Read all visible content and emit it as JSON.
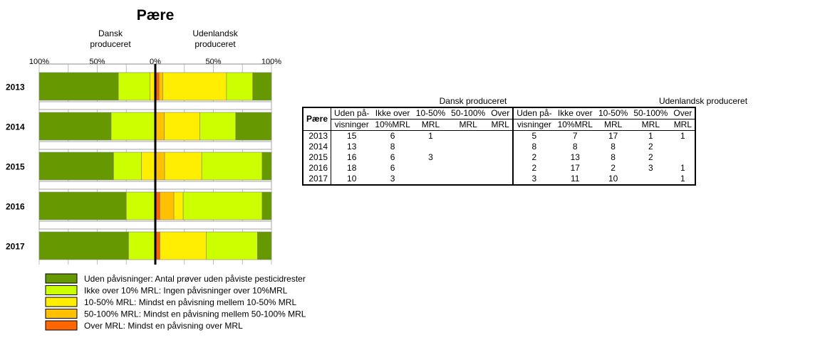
{
  "chart_data": {
    "type": "bar",
    "title": "Pære",
    "subtitles": {
      "left": [
        "Dansk",
        "produceret"
      ],
      "right": [
        "Udenlandsk",
        "produceret"
      ]
    },
    "x_ticks": [
      "100%",
      "50%",
      "0%",
      "50%",
      "100%"
    ],
    "categories": [
      "2013",
      "2014",
      "2015",
      "2016",
      "2017"
    ],
    "colors": {
      "uden": "#669900",
      "ikke10": "#CCFF00",
      "p10_50": "#FFEE00",
      "p50_100": "#FFC000",
      "over": "#FF6600"
    },
    "domestic": [
      {
        "year": "2013",
        "uden": 15,
        "ikke10": 6,
        "p10_50": 1,
        "p50_100": 0,
        "over": 0
      },
      {
        "year": "2014",
        "uden": 13,
        "ikke10": 8,
        "p10_50": 0,
        "p50_100": 0,
        "over": 0
      },
      {
        "year": "2015",
        "uden": 16,
        "ikke10": 6,
        "p10_50": 3,
        "p50_100": 0,
        "over": 0
      },
      {
        "year": "2016",
        "uden": 18,
        "ikke10": 6,
        "p10_50": 0,
        "p50_100": 0,
        "over": 0
      },
      {
        "year": "2017",
        "uden": 10,
        "ikke10": 3,
        "p10_50": 0,
        "p50_100": 0,
        "over": 0
      }
    ],
    "foreign": [
      {
        "year": "2013",
        "uden": 5,
        "ikke10": 7,
        "p10_50": 17,
        "p50_100": 1,
        "over": 1
      },
      {
        "year": "2014",
        "uden": 8,
        "ikke10": 8,
        "p10_50": 8,
        "p50_100": 2,
        "over": 0
      },
      {
        "year": "2015",
        "uden": 2,
        "ikke10": 13,
        "p10_50": 8,
        "p50_100": 2,
        "over": 0
      },
      {
        "year": "2016",
        "uden": 2,
        "ikke10": 17,
        "p10_50": 2,
        "p50_100": 3,
        "over": 1
      },
      {
        "year": "2017",
        "uden": 3,
        "ikke10": 11,
        "p10_50": 10,
        "p50_100": 0,
        "over": 1
      }
    ],
    "legend": [
      {
        "key": "uden",
        "label": "Uden påvisninger: Antal prøver uden påviste pesticidrester"
      },
      {
        "key": "ikke10",
        "label": "Ikke over 10% MRL: Ingen påvisninger over 10%MRL"
      },
      {
        "key": "p10_50",
        "label": "10-50% MRL: Mindst en påvisning mellem 10-50% MRL"
      },
      {
        "key": "p50_100",
        "label": "50-100% MRL: Mindst en påvisning mellem 50-100% MRL"
      },
      {
        "key": "over",
        "label": "Over MRL:  Mindst en påvisning over MRL"
      }
    ]
  },
  "table": {
    "group_dansk": "Dansk produceret",
    "group_udenlandsk": "Udenlandsk produceret",
    "corner": "Pære",
    "headers": [
      [
        "Uden på-",
        "visninger"
      ],
      [
        "Ikke over",
        "10%MRL"
      ],
      [
        "10-50%",
        "MRL"
      ],
      [
        "50-100%",
        "MRL"
      ],
      [
        "Over",
        "MRL"
      ]
    ],
    "rows": [
      {
        "year": "2013",
        "dansk": [
          "15",
          "6",
          "1",
          "",
          ""
        ],
        "udenlandsk": [
          "5",
          "7",
          "17",
          "1",
          "1"
        ]
      },
      {
        "year": "2014",
        "dansk": [
          "13",
          "8",
          "",
          "",
          ""
        ],
        "udenlandsk": [
          "8",
          "8",
          "8",
          "2",
          ""
        ]
      },
      {
        "year": "2015",
        "dansk": [
          "16",
          "6",
          "3",
          "",
          ""
        ],
        "udenlandsk": [
          "2",
          "13",
          "8",
          "2",
          ""
        ]
      },
      {
        "year": "2016",
        "dansk": [
          "18",
          "6",
          "",
          "",
          ""
        ],
        "udenlandsk": [
          "2",
          "17",
          "2",
          "3",
          "1"
        ]
      },
      {
        "year": "2017",
        "dansk": [
          "10",
          "3",
          "",
          "",
          ""
        ],
        "udenlandsk": [
          "3",
          "11",
          "10",
          "",
          "1"
        ]
      }
    ]
  }
}
